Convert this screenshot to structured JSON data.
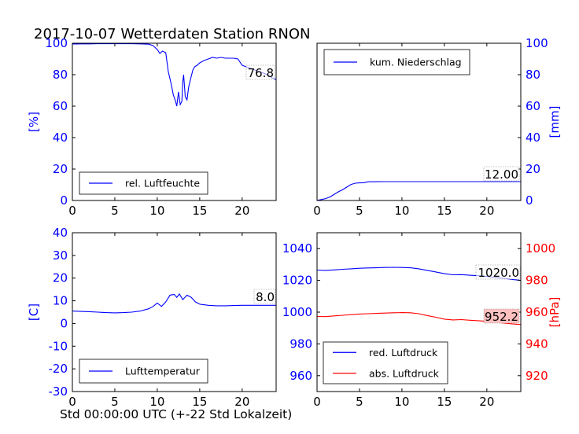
{
  "figure": {
    "title": "2017-10-07 Wetterdaten Station RNON",
    "xlabel": "Std 00:00:00 UTC (+-22 Std Lokalzeit)"
  },
  "colors": {
    "blue": "#0000ff",
    "red": "#ff0000",
    "black": "#000000",
    "red_label_bg": "#ffc0c0"
  },
  "chart_data": [
    {
      "type": "line",
      "id": "humidity",
      "ylabel": "[%]",
      "ylabel_color": "blue",
      "ylabel_side": "left",
      "xlim": [
        0,
        24
      ],
      "ylim": [
        0,
        100
      ],
      "xticks": [
        0,
        5,
        10,
        15,
        20
      ],
      "yticks": [
        0,
        20,
        40,
        60,
        80,
        100
      ],
      "ytick_color": "blue",
      "grid": false,
      "legend_position": "lower-left",
      "series": [
        {
          "name": "rel. Luftfeuchte",
          "color": "blue",
          "x": [
            0,
            0.5,
            1,
            2,
            3,
            4,
            5,
            6,
            7,
            8,
            9,
            9.5,
            10,
            10.3,
            10.6,
            11,
            11.3,
            11.6,
            11.9,
            12.1,
            12.3,
            12.5,
            12.7,
            12.9,
            13.0,
            13.1,
            13.3,
            13.5,
            13.7,
            14.0,
            14.2,
            14.4,
            14.7,
            15.0,
            15.5,
            16,
            16.5,
            17,
            17.5,
            18,
            19,
            19.5,
            20,
            20.5,
            21,
            21.5,
            22,
            22.5,
            23,
            23.5,
            24
          ],
          "y": [
            99.5,
            99.5,
            99.6,
            99.6,
            99.7,
            99.7,
            99.7,
            99.8,
            99.7,
            99.6,
            99.4,
            98.5,
            96.0,
            93.5,
            95.0,
            94.0,
            82.0,
            75.0,
            67.0,
            64.0,
            60.0,
            69.0,
            61.0,
            63.0,
            75.0,
            80.0,
            66.0,
            64.0,
            72.0,
            79.0,
            83.0,
            85.0,
            86.0,
            87.5,
            89.0,
            90.0,
            91.0,
            90.5,
            91.0,
            90.5,
            90.5,
            90.0,
            86.0,
            85.0,
            84.0,
            83.0,
            82.0,
            81.0,
            80.0,
            78.0,
            76.8
          ]
        }
      ],
      "annotation": {
        "text": "76.8",
        "bg": "none"
      }
    },
    {
      "type": "line",
      "id": "precipitation",
      "ylabel": "[mm]",
      "ylabel_color": "blue",
      "ylabel_side": "right",
      "xlim": [
        0,
        24
      ],
      "ylim": [
        0,
        100
      ],
      "xticks": [
        0,
        5,
        10,
        15,
        20
      ],
      "yticks": [
        0,
        20,
        40,
        60,
        80,
        100
      ],
      "ytick_color": "blue",
      "grid": false,
      "legend_position": "upper-left",
      "series": [
        {
          "name": "kum. Niederschlag",
          "color": "blue",
          "x": [
            0,
            0.5,
            1,
            1.5,
            2,
            2.5,
            3,
            3.5,
            4,
            4.5,
            5,
            5.5,
            6,
            7,
            8,
            10,
            12,
            15,
            18,
            20,
            22,
            24
          ],
          "y": [
            0,
            0.6,
            1.2,
            2.2,
            3.8,
            5.5,
            6.8,
            8.5,
            10.2,
            11.0,
            11.2,
            11.3,
            11.9,
            11.95,
            12.0,
            12.0,
            12.0,
            12.0,
            12.0,
            12.0,
            12.0,
            12.0
          ]
        }
      ],
      "annotation": {
        "text": "12.00",
        "bg": "none"
      }
    },
    {
      "type": "line",
      "id": "temperature",
      "ylabel": "[C]",
      "ylabel_color": "blue",
      "ylabel_side": "left",
      "xlim": [
        0,
        24
      ],
      "ylim": [
        -30,
        40
      ],
      "xticks": [
        0,
        5,
        10,
        15,
        20
      ],
      "yticks": [
        -30,
        -20,
        -10,
        0,
        10,
        20,
        30,
        40
      ],
      "ytick_color": "blue",
      "grid": false,
      "legend_position": "lower-left",
      "series": [
        {
          "name": "Lufttemperatur",
          "color": "blue",
          "x": [
            0,
            1,
            2,
            3,
            4,
            5,
            6,
            7,
            8,
            9,
            9.5,
            10,
            10.5,
            11,
            11.5,
            12,
            12.3,
            12.6,
            13,
            13.5,
            14,
            14.5,
            15,
            16,
            17,
            18,
            19,
            20,
            21,
            22,
            23,
            24
          ],
          "y": [
            5.5,
            5.3,
            5.2,
            5.0,
            4.8,
            4.7,
            4.8,
            5.0,
            5.5,
            6.5,
            7.5,
            9.0,
            7.5,
            9.5,
            12.5,
            12.8,
            11.5,
            13.0,
            10.5,
            12.5,
            11.5,
            9.5,
            8.5,
            8.0,
            7.8,
            7.8,
            7.9,
            8.0,
            8.0,
            8.0,
            8.0,
            8.0
          ]
        }
      ],
      "annotation": {
        "text": "8.0",
        "bg": "none"
      }
    },
    {
      "type": "line",
      "id": "pressure",
      "ylabel": "[hPa]",
      "ylabel_color": "red",
      "ylabel_side": "right",
      "xlim": [
        0,
        24
      ],
      "ylim": [
        950,
        1050
      ],
      "ylim_right": [
        910,
        1010
      ],
      "xticks": [
        0,
        5,
        10,
        15,
        20
      ],
      "yticks": [
        960,
        980,
        1000,
        1020,
        1040
      ],
      "ytick_color": "blue",
      "yticks_right": [
        920,
        940,
        960,
        980,
        1000
      ],
      "ytick_right_color": "red",
      "grid": false,
      "legend_position": "lower-left",
      "series": [
        {
          "name": "red. Luftdruck",
          "color": "blue",
          "axis": "left",
          "x": [
            0,
            1,
            2,
            3,
            4,
            5,
            6,
            7,
            8,
            9,
            10,
            11,
            12,
            13,
            14,
            15,
            16,
            17,
            18,
            19,
            20,
            21,
            22,
            23,
            24
          ],
          "y": [
            1026.5,
            1026.3,
            1026.6,
            1027.0,
            1027.3,
            1027.6,
            1027.8,
            1027.9,
            1028.1,
            1028.2,
            1028.1,
            1027.9,
            1027.3,
            1026.3,
            1025.3,
            1024.2,
            1023.5,
            1023.6,
            1023.2,
            1022.9,
            1022.5,
            1021.8,
            1021.3,
            1020.6,
            1020.0
          ]
        },
        {
          "name": "abs. Luftdruck",
          "color": "red",
          "axis": "right",
          "x": [
            0,
            1,
            2,
            3,
            4,
            5,
            6,
            7,
            8,
            9,
            10,
            11,
            12,
            13,
            14,
            15,
            16,
            17,
            18,
            19,
            20,
            21,
            22,
            23,
            24
          ],
          "y": [
            957.3,
            957.2,
            957.6,
            958.0,
            958.4,
            958.8,
            959.0,
            959.2,
            959.4,
            959.6,
            959.7,
            959.6,
            959.0,
            957.8,
            956.8,
            955.6,
            955.1,
            955.3,
            954.9,
            954.6,
            954.2,
            953.6,
            953.1,
            952.6,
            952.2
          ]
        }
      ],
      "annotations": [
        {
          "text": "1020.0",
          "bg": "none"
        },
        {
          "text": "952.2",
          "bg": "red_label_bg"
        }
      ]
    }
  ]
}
